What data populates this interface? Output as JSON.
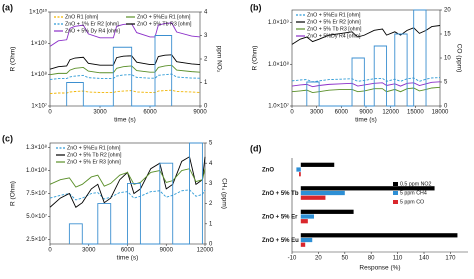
{
  "chart_data": [
    {
      "type": "line",
      "panel_label": "(a)",
      "xlabel": "time (s)",
      "ylabel": "R (Ohm)",
      "y2label": "ppm NO₂",
      "xlim": [
        0,
        9000
      ],
      "xticks": [
        0,
        3000,
        6000,
        9000
      ],
      "ylog": true,
      "ylim": [
        10000000.0,
        10000000000.0
      ],
      "yticks": [
        {
          "value": 10000000.0,
          "label": "1×10⁷"
        },
        {
          "value": 100000000.0,
          "label": "1×10⁸"
        },
        {
          "value": 1000000000.0,
          "label": "1×10⁹"
        },
        {
          "value": 10000000000.0,
          "label": "1×10¹⁰"
        }
      ],
      "y2lim": [
        0,
        4
      ],
      "y2ticks": [
        0,
        1,
        2,
        3,
        4
      ],
      "legend": "upper left",
      "x": [
        0,
        500,
        1000,
        1200,
        1500,
        2000,
        2300,
        3000,
        3800,
        4000,
        4400,
        4900,
        5200,
        6000,
        6300,
        6500,
        6900,
        7300,
        7600,
        8500,
        9000
      ],
      "series": [
        {
          "name": "ZnO R1 [ohm]",
          "color": "#f0b400",
          "dashed": true,
          "values": [
            25000000.0,
            26000000.0,
            26000000.0,
            28000000.0,
            29000000.0,
            30000000.0,
            28000000.0,
            27000000.0,
            27000000.0,
            29000000.0,
            30000000.0,
            31000000.0,
            28000000.0,
            27000000.0,
            27000000.0,
            30000000.0,
            31000000.0,
            32000000.0,
            29000000.0,
            28000000.0,
            27000000.0
          ]
        },
        {
          "name": "ZnO + 1% Er R2 [ohm]",
          "color": "#2e9bd6",
          "dashed": true,
          "values": [
            70000000.0,
            75000000.0,
            75000000.0,
            85000000.0,
            90000000.0,
            95000000.0,
            80000000.0,
            76000000.0,
            76000000.0,
            90000000.0,
            98000000.0,
            100000000.0,
            82000000.0,
            77000000.0,
            77000000.0,
            95000000.0,
            100000000.0,
            105000000.0,
            84000000.0,
            78000000.0,
            77000000.0
          ]
        },
        {
          "name": "ZnO + 5% Dy R4 [ohm]",
          "color": "#8b2fc9",
          "dashed": false,
          "values": [
            800000000.0,
            1200000000.0,
            1300000000.0,
            3000000000.0,
            3500000000.0,
            3800000000.0,
            2000000000.0,
            1500000000.0,
            1500000000.0,
            3500000000.0,
            4000000000.0,
            4200000000.0,
            2200000000.0,
            1600000000.0,
            1600000000.0,
            3800000000.0,
            4300000000.0,
            4500000000.0,
            2300000000.0,
            1700000000.0,
            1600000000.0
          ]
        },
        {
          "name": "ZnO + 5%Eu R1 [ohm]",
          "color": "#5a8f29",
          "dashed": false,
          "values": [
            100000000.0,
            110000000.0,
            110000000.0,
            140000000.0,
            160000000.0,
            170000000.0,
            130000000.0,
            115000000.0,
            115000000.0,
            160000000.0,
            180000000.0,
            190000000.0,
            135000000.0,
            120000000.0,
            120000000.0,
            170000000.0,
            190000000.0,
            200000000.0,
            140000000.0,
            125000000.0,
            120000000.0
          ]
        },
        {
          "name": "ZnO + 5% Tb R3 [ohm]",
          "color": "#000000",
          "dashed": false,
          "values": [
            150000000.0,
            180000000.0,
            190000000.0,
            300000000.0,
            340000000.0,
            360000000.0,
            230000000.0,
            200000000.0,
            200000000.0,
            350000000.0,
            390000000.0,
            400000000.0,
            250000000.0,
            210000000.0,
            210000000.0,
            380000000.0,
            420000000.0,
            430000000.0,
            260000000.0,
            220000000.0,
            210000000.0
          ]
        },
        {
          "axis": "y2",
          "color": "#3b8fd0",
          "dashed": false,
          "x": [
            1000,
            1000,
            2000,
            2000,
            3800,
            3800,
            4900,
            4900,
            6300,
            6300,
            7300,
            7300
          ],
          "values": [
            0,
            1,
            1,
            0,
            0,
            2.5,
            2.5,
            0,
            0,
            3,
            3,
            0
          ]
        }
      ]
    },
    {
      "type": "line",
      "panel_label": "(b)",
      "xlabel": "time (s)",
      "ylabel": "R (Ohm)",
      "y2label": "CO (ppm)",
      "xlim": [
        0,
        18000
      ],
      "xticks": [
        0,
        3000,
        6000,
        9000,
        12000,
        15000,
        18000
      ],
      "ylog": true,
      "ylim": [
        10000000.0,
        2000000000.0
      ],
      "yticks": [
        {
          "value": 10000000.0,
          "label": "1.0×10⁷"
        },
        {
          "value": 100000000.0,
          "label": "1.0×10⁸"
        },
        {
          "value": 1000000000.0,
          "label": "1.0×10⁹"
        }
      ],
      "y2lim": [
        0,
        20
      ],
      "y2ticks": [
        0,
        5,
        10,
        15,
        20
      ],
      "legend": "upper left",
      "x": [
        0,
        1000,
        1800,
        2500,
        3300,
        4500,
        6000,
        7300,
        8000,
        8800,
        10000,
        11000,
        11500,
        12500,
        13200,
        14000,
        14800,
        15500,
        16300,
        17000,
        18000
      ],
      "series": [
        {
          "name": "ZnO + 5%Eu R1 [ohm]",
          "color": "#2e9bd6",
          "dashed": true,
          "values": [
            40000000.0,
            42000000.0,
            43000000.0,
            38000000.0,
            40000000.0,
            43000000.0,
            44000000.0,
            45000000.0,
            39000000.0,
            41000000.0,
            45000000.0,
            46000000.0,
            39000000.0,
            44000000.0,
            39000000.0,
            45000000.0,
            47000000.0,
            39000000.0,
            44000000.0,
            47000000.0,
            48000000.0
          ]
        },
        {
          "name": "ZnO + 5% Er R2 [ohm]",
          "color": "#000000",
          "dashed": false,
          "values": [
            300000000.0,
            400000000.0,
            450000000.0,
            350000000.0,
            400000000.0,
            500000000.0,
            550000000.0,
            600000000.0,
            450000000.0,
            500000000.0,
            650000000.0,
            700000000.0,
            500000000.0,
            600000000.0,
            500000000.0,
            650000000.0,
            750000000.0,
            550000000.0,
            650000000.0,
            800000000.0,
            850000000.0
          ]
        },
        {
          "name": "ZnO + 5% Tb R3 [ohm]",
          "color": "#5a8f29",
          "dashed": false,
          "values": [
            22000000.0,
            23000000.0,
            24000000.0,
            21000000.0,
            22000000.0,
            24000000.0,
            25000000.0,
            25000000.0,
            22000000.0,
            23000000.0,
            26000000.0,
            26000000.0,
            22000000.0,
            25000000.0,
            22000000.0,
            26000000.0,
            27000000.0,
            23000000.0,
            25000000.0,
            27000000.0,
            28000000.0
          ]
        },
        {
          "name": "ZnO + 5%Dy R4 [ohm]",
          "color": "#8b2fc9",
          "dashed": false,
          "values": [
            30000000.0,
            32000000.0,
            33000000.0,
            29000000.0,
            31000000.0,
            33000000.0,
            34000000.0,
            35000000.0,
            30000000.0,
            32000000.0,
            35000000.0,
            36000000.0,
            31000000.0,
            34000000.0,
            30000000.0,
            35000000.0,
            36000000.0,
            31000000.0,
            34000000.0,
            37000000.0,
            38000000.0
          ]
        },
        {
          "axis": "y2",
          "color": "#3b8fd0",
          "dashed": false,
          "x": [
            1800,
            1800,
            3300,
            3300,
            7300,
            7300,
            8800,
            8800,
            10000,
            10000,
            11500,
            11500,
            12500,
            12500,
            14000,
            14000,
            14800,
            14800,
            16300,
            16300
          ],
          "values": [
            0,
            5,
            5,
            0,
            0,
            10,
            10,
            0,
            0,
            12.5,
            12.5,
            0,
            0,
            15,
            15,
            0,
            0,
            20,
            20,
            0
          ]
        }
      ]
    },
    {
      "type": "line",
      "panel_label": "(c)",
      "xlabel": "time (s)",
      "ylabel": "R (Ohm)",
      "y2label": "CH₄ (ppm)",
      "xlim": [
        0,
        12000
      ],
      "xticks": [
        0,
        3000,
        6000,
        9000,
        12000
      ],
      "ylog": false,
      "ylim": [
        20000000.0,
        130000000.0
      ],
      "yticks": [
        {
          "value": 25000000.0,
          "label": "2.5×10⁷"
        },
        {
          "value": 50000000.0,
          "label": "5.0×10⁷"
        },
        {
          "value": 75000000.0,
          "label": "7.5×10⁷"
        },
        {
          "value": 100000000.0,
          "label": "1.0×10⁸"
        },
        {
          "value": 125000000.0,
          "label": "1.3×10⁸"
        }
      ],
      "y2lim": [
        0,
        5
      ],
      "y2ticks": [
        0,
        1,
        2,
        3,
        4,
        5
      ],
      "legend": "upper left",
      "x": [
        0,
        800,
        1500,
        2000,
        2500,
        3200,
        3700,
        4200,
        4700,
        5400,
        6000,
        6500,
        7000,
        7800,
        8500,
        9000,
        9500,
        10200,
        10800,
        11300,
        11800,
        12000
      ],
      "series": [
        {
          "name": "ZnO + 5%Eu R1 [ohm]",
          "color": "#2e9bd6",
          "dashed": true,
          "values": [
            70000000.0,
            73000000.0,
            75000000.0,
            68000000.0,
            70000000.0,
            75000000.0,
            76000000.0,
            69000000.0,
            71000000.0,
            76000000.0,
            77000000.0,
            70000000.0,
            72000000.0,
            77000000.0,
            78000000.0,
            71000000.0,
            73000000.0,
            78000000.0,
            79000000.0,
            72000000.0,
            74000000.0,
            79000000.0
          ]
        },
        {
          "name": "ZnO + 5% Tb R2 [ohm]",
          "color": "#000000",
          "dashed": false,
          "values": [
            60000000.0,
            70000000.0,
            75000000.0,
            60000000.0,
            65000000.0,
            80000000.0,
            85000000.0,
            65000000.0,
            70000000.0,
            90000000.0,
            98000000.0,
            75000000.0,
            80000000.0,
            102000000.0,
            108000000.0,
            80000000.0,
            85000000.0,
            110000000.0,
            115000000.0,
            85000000.0,
            90000000.0,
            115000000.0
          ]
        },
        {
          "name": "ZnO + 5% Er R3 [ohm]",
          "color": "#5a8f29",
          "dashed": false,
          "values": [
            85000000.0,
            90000000.0,
            92000000.0,
            82000000.0,
            85000000.0,
            93000000.0,
            95000000.0,
            83000000.0,
            86000000.0,
            95000000.0,
            98000000.0,
            85000000.0,
            87000000.0,
            98000000.0,
            100000000.0,
            87000000.0,
            89000000.0,
            100000000.0,
            102000000.0,
            88000000.0,
            90000000.0,
            102000000.0
          ]
        },
        {
          "axis": "y2",
          "color": "#3b8fd0",
          "dashed": false,
          "x": [
            1500,
            1500,
            2500,
            2500,
            3700,
            3700,
            4700,
            4700,
            6000,
            6000,
            7000,
            7000,
            8500,
            8500,
            9500,
            9500,
            10800,
            10800,
            11800,
            11800
          ],
          "values": [
            0,
            1,
            1,
            0,
            0,
            2,
            2,
            0,
            0,
            3,
            3,
            0,
            0,
            4,
            4,
            0,
            0,
            5,
            5,
            0
          ]
        }
      ]
    },
    {
      "type": "hbar",
      "panel_label": "(d)",
      "xlabel": "Response (%)",
      "xlim": [
        -10,
        190
      ],
      "xticks": [
        -10,
        20,
        50,
        80,
        110,
        140,
        170
      ],
      "legend": "center right",
      "categories": [
        "ZnO",
        "ZnO + 5% Tb",
        "ZnO + 5% Er",
        "ZnO + 5% Eu"
      ],
      "series": [
        {
          "name": "0.5 ppm NO2",
          "color": "#000000",
          "values": [
            38,
            152,
            60,
            178
          ]
        },
        {
          "name": "5 ppm CH4",
          "color": "#2d8fd5",
          "values": [
            -5,
            50,
            15,
            13
          ]
        },
        {
          "name": "5 ppm CO",
          "color": "#d9262c",
          "values": [
            -2,
            28,
            8,
            5
          ]
        }
      ]
    }
  ]
}
